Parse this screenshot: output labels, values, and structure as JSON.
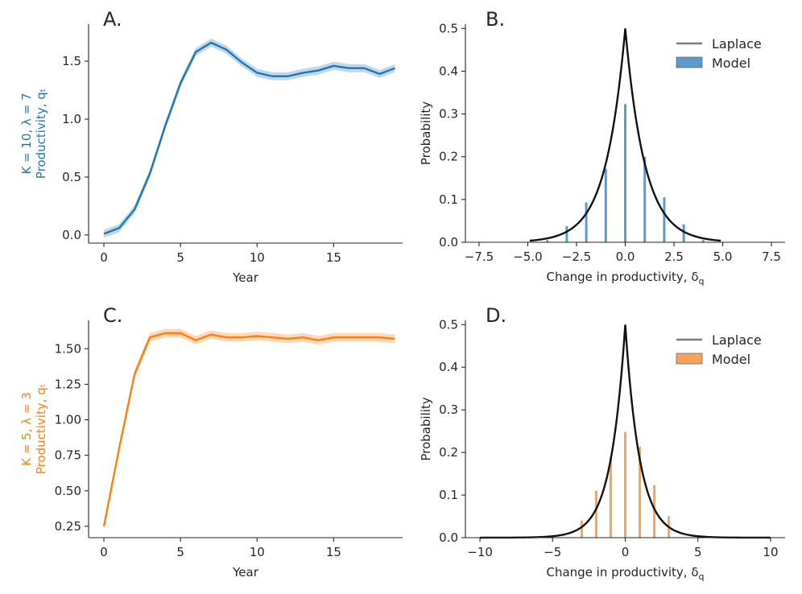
{
  "colors": {
    "blue": "#1f77b4",
    "blue_band": "#b9d3ea",
    "blue_bar": "#5b9ac9",
    "orange": "#ff7f0e",
    "orange_band": "#fdd5b2",
    "orange_bar": "#f7a35c",
    "laplace": "#111111",
    "laplace_legend": "#7a7a7a"
  },
  "chart_data": [
    {
      "type": "line",
      "panel": "A.",
      "color": "blue",
      "xlabel": "Year",
      "ylabel_lines": [
        "K = 10, λ = 7",
        "Productivity, qₜ"
      ],
      "ylim": [
        -0.07,
        1.82
      ],
      "xlim": [
        -1,
        19.5
      ],
      "xticks": [
        0,
        5,
        10,
        15
      ],
      "xtick_labels": [
        "0",
        "5",
        "10",
        "15"
      ],
      "yticks": [
        0.0,
        0.5,
        1.0,
        1.5
      ],
      "ytick_labels": [
        "0.0",
        "0.5",
        "1.0",
        "1.5"
      ],
      "x": [
        0,
        1,
        2,
        3,
        4,
        5,
        6,
        7,
        8,
        9,
        10,
        11,
        12,
        13,
        14,
        15,
        16,
        17,
        18,
        19
      ],
      "values": [
        0.01,
        0.06,
        0.22,
        0.53,
        0.94,
        1.31,
        1.58,
        1.66,
        1.6,
        1.49,
        1.4,
        1.37,
        1.37,
        1.4,
        1.42,
        1.46,
        1.44,
        1.44,
        1.39,
        1.44
      ],
      "band": 0.035
    },
    {
      "type": "bar",
      "panel": "B.",
      "color": "blue",
      "xlabel": "Change in productivity, δ_q",
      "ylabel": "Probability",
      "xlim": [
        -8.2,
        8.2
      ],
      "ylim": [
        0,
        0.51
      ],
      "xticks": [
        -7.5,
        -5.0,
        -2.5,
        0.0,
        2.5,
        5.0,
        7.5
      ],
      "xtick_labels": [
        "−7.5",
        "−5.0",
        "−2.5",
        "0.0",
        "2.5",
        "5.0",
        "7.5"
      ],
      "yticks": [
        0.0,
        0.1,
        0.2,
        0.3,
        0.4,
        0.5
      ],
      "ytick_labels": [
        "0.0",
        "0.1",
        "0.2",
        "0.3",
        "0.4",
        "0.5"
      ],
      "categories": [
        -4,
        -3,
        -2,
        -1,
        0,
        1,
        2,
        3,
        4
      ],
      "values": [
        0.005,
        0.038,
        0.093,
        0.172,
        0.323,
        0.2,
        0.105,
        0.042,
        0.005
      ],
      "laplace": {
        "loc": 0,
        "scale": 1.0,
        "range": [
          -4.9,
          4.9
        ]
      },
      "legend": [
        "Laplace",
        "Model"
      ],
      "legend_position": "top-right"
    },
    {
      "type": "line",
      "panel": "C.",
      "color": "orange",
      "xlabel": "Year",
      "ylabel_lines": [
        "K = 5, λ = 3",
        "Productivity, qₜ"
      ],
      "ylim": [
        0.17,
        1.7
      ],
      "xlim": [
        -1,
        19.5
      ],
      "xticks": [
        0,
        5,
        10,
        15
      ],
      "xtick_labels": [
        "0",
        "5",
        "10",
        "15"
      ],
      "yticks": [
        0.25,
        0.5,
        0.75,
        1.0,
        1.25,
        1.5
      ],
      "ytick_labels": [
        "0.25",
        "0.50",
        "0.75",
        "1.00",
        "1.25",
        "1.50"
      ],
      "x": [
        0,
        1,
        2,
        3,
        4,
        5,
        6,
        7,
        8,
        9,
        10,
        11,
        12,
        13,
        14,
        15,
        16,
        17,
        18,
        19
      ],
      "values": [
        0.25,
        0.8,
        1.32,
        1.58,
        1.61,
        1.61,
        1.56,
        1.6,
        1.58,
        1.58,
        1.59,
        1.58,
        1.57,
        1.58,
        1.56,
        1.58,
        1.58,
        1.58,
        1.58,
        1.57
      ],
      "band": 0.03
    },
    {
      "type": "bar",
      "panel": "D.",
      "color": "orange",
      "xlabel": "Change in productivity, δ_q",
      "ylabel": "Probability",
      "xlim": [
        -11,
        11
      ],
      "ylim": [
        0,
        0.51
      ],
      "xticks": [
        -10,
        -5,
        0,
        5,
        10
      ],
      "xtick_labels": [
        "−10",
        "−5",
        "0",
        "5",
        "10"
      ],
      "yticks": [
        0.0,
        0.1,
        0.2,
        0.3,
        0.4,
        0.5
      ],
      "ytick_labels": [
        "0.0",
        "0.1",
        "0.2",
        "0.3",
        "0.4",
        "0.5"
      ],
      "categories": [
        -3,
        -2,
        -1,
        0,
        1,
        2,
        3
      ],
      "values": [
        0.04,
        0.11,
        0.19,
        0.248,
        0.213,
        0.123,
        0.05
      ],
      "laplace": {
        "loc": 0,
        "scale": 1.0,
        "range": [
          -10,
          10
        ]
      },
      "legend": [
        "Laplace",
        "Model"
      ],
      "legend_position": "top-right"
    }
  ]
}
